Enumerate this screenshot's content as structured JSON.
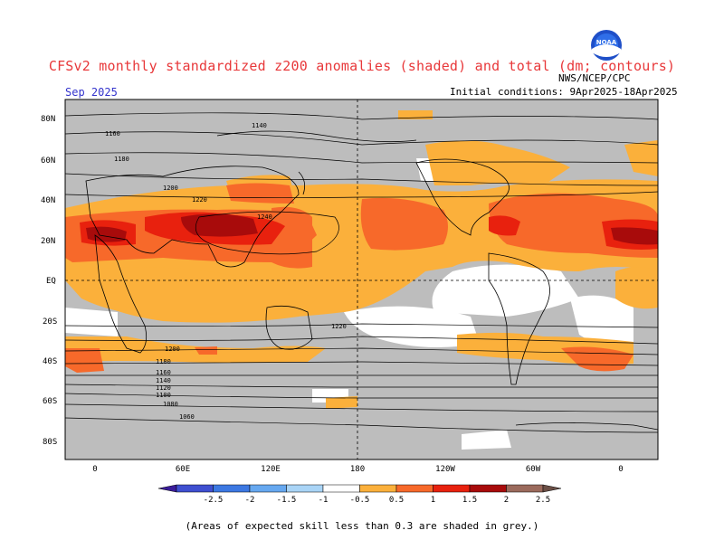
{
  "title": "CFSv2 monthly standardized z200 anomalies (shaded) and total (dm; contours)",
  "target_month": "Sep 2025",
  "initial_conditions": "Initial conditions: 9Apr2025-18Apr2025",
  "agency": "NWS/NCEP/CPC",
  "logo_text": "NOAA",
  "footnote": "(Areas of expected skill less than 0.3 are shaded in grey.)",
  "lat_labels": [
    "80N",
    "60N",
    "40N",
    "20N",
    "EQ",
    "20S",
    "40S",
    "60S",
    "80S"
  ],
  "lon_labels": [
    "0",
    "60E",
    "120E",
    "180",
    "120W",
    "60W",
    "0"
  ],
  "colorbar": {
    "labels": [
      "-2.5",
      "-2",
      "-1.5",
      "-1",
      "-0.5",
      "0.5",
      "1",
      "1.5",
      "2",
      "2.5"
    ],
    "colors": [
      "#3a1c9a",
      "#3f4fd0",
      "#3c78e2",
      "#66a8f0",
      "#a9d4f6",
      "#ffffff",
      "#fbb03b",
      "#f7692a",
      "#e8210e",
      "#a80b0b",
      "#9b6a5c",
      "#6b4f46"
    ]
  },
  "contours": [
    "1140",
    "1160",
    "1180",
    "1200",
    "1220",
    "1240",
    "1220",
    "1200",
    "1180",
    "1160",
    "1140",
    "1120",
    "1100",
    "1080",
    "1060"
  ],
  "colors": {
    "grey": "#bdbdbd",
    "light_orange": "#fbb03b",
    "orange": "#f7692a",
    "red": "#e8210e",
    "dark_red": "#a80b0b",
    "title_red": "#e8383a",
    "month_blue": "#3333cc"
  }
}
